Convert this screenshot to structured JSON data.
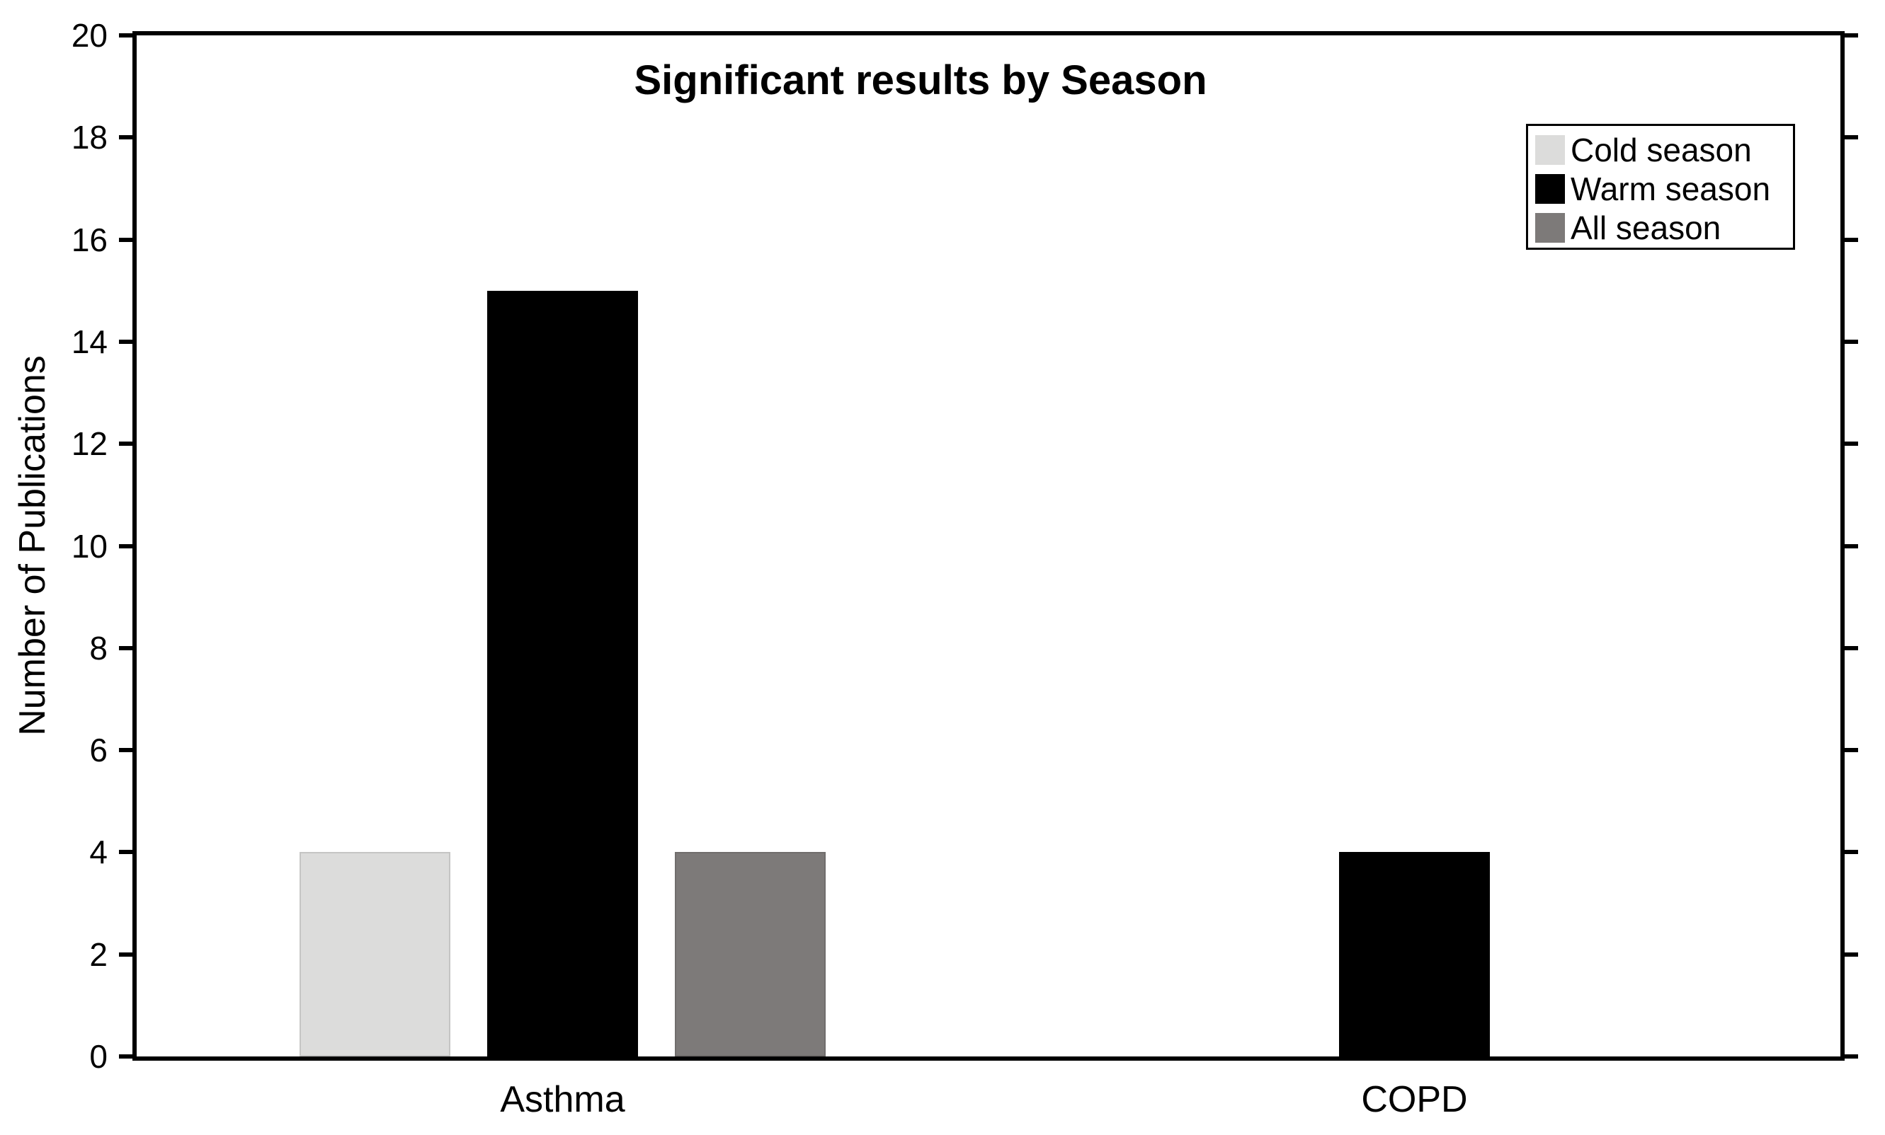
{
  "chart_data": {
    "type": "bar",
    "title": "Significant results by Season",
    "ylabel": "Number of Publications",
    "xlabel": "",
    "categories": [
      "Asthma",
      "COPD"
    ],
    "series": [
      {
        "name": "Cold season",
        "color": "#dcdcdb",
        "values": [
          4,
          0
        ]
      },
      {
        "name": "Warm season",
        "color": "#000000",
        "values": [
          15,
          4
        ]
      },
      {
        "name": "All season",
        "color": "#7d7a79",
        "values": [
          4,
          0
        ]
      }
    ],
    "ylim": [
      0,
      20
    ],
    "yticks": [
      0,
      2,
      4,
      6,
      8,
      10,
      12,
      14,
      16,
      18,
      20
    ],
    "grid": false,
    "legend_position": "top-right-inside",
    "legend_border_color": "#000000",
    "axis_color": "#000000",
    "text_color": "#000000",
    "background_color": "#ffffff"
  }
}
